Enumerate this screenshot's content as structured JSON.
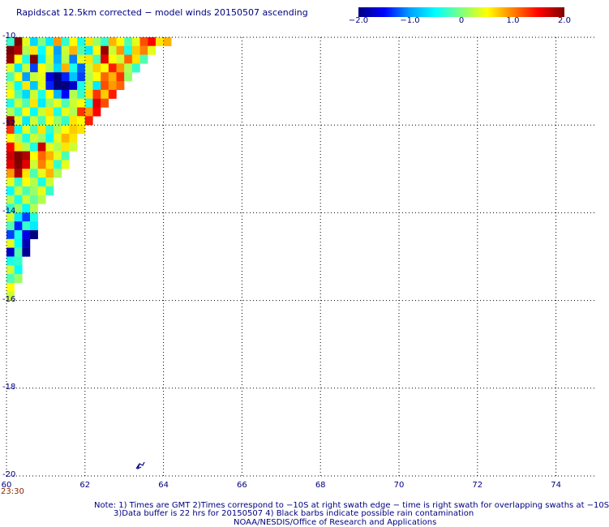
{
  "title": "Rapidscat 12.5km corrected − model winds 20150507 ascending",
  "colorbar": {
    "labels": [
      "−2.0",
      "−1.0",
      "0",
      "1.0",
      "2.0"
    ],
    "values": [
      -2.0,
      -1.0,
      0,
      1.0,
      2.0
    ],
    "range": [
      -2.0,
      2.0
    ],
    "colors": [
      "#00007f",
      "#0000ff",
      "#00a0ff",
      "#00ffff",
      "#80ff80",
      "#ffff00",
      "#ff8000",
      "#ff0000",
      "#7f0000"
    ]
  },
  "map": {
    "lat_labels": [
      "-10",
      "-12",
      "-14",
      "-16",
      "-18",
      "-20"
    ],
    "lat_values": [
      -10,
      -12,
      -14,
      -16,
      -18,
      -20
    ],
    "lon_labels": [
      "60",
      "62",
      "64",
      "66",
      "68",
      "70",
      "72",
      "74"
    ],
    "lon_values": [
      60,
      62,
      64,
      66,
      68,
      70,
      72,
      74
    ],
    "lat_range": [
      -20,
      -10
    ],
    "lon_range": [
      60,
      75
    ],
    "grid": true,
    "time_label": "23:30",
    "swath": {
      "region": "triangle from -10S/60E to -10S/64.3E down to -16S/60E",
      "value_range": [
        -2.0,
        2.0
      ],
      "rows": [
        {
          "lat": -10.1,
          "values": [
            -0.3,
            2,
            0.4,
            -0.7,
            0,
            -0.6,
            0.9,
            -0.3,
            0.5,
            -0.4,
            0.6,
            0.1,
            -0.3,
            0.8,
            0.5,
            -0.2,
            0.4,
            1.2,
            1.5,
            0.6,
            0.8
          ]
        },
        {
          "lat": -10.3,
          "values": [
            2,
            1.8,
            0.2,
            0.6,
            -0.5,
            0.4,
            -1,
            0.3,
            0.8,
            -0.2,
            -0.6,
            0.5,
            1.9,
            0.3,
            0.9,
            -0.4,
            0.7,
            1,
            0.4
          ]
        },
        {
          "lat": -10.5,
          "values": [
            1.9,
            0.5,
            -0.4,
            2,
            -0.6,
            0.3,
            -0.9,
            0.2,
            -1.1,
            0.4,
            0.6,
            -0.2,
            1.6,
            0.5,
            0.3,
            1.1,
            0.6,
            -0.2
          ]
        },
        {
          "lat": -10.7,
          "values": [
            0.4,
            -0.6,
            0.3,
            -1.3,
            0.5,
            0.2,
            -0.7,
            0.8,
            -0.4,
            -1.2,
            0.3,
            0.7,
            0.5,
            1.4,
            0.9,
            0.2,
            -0.3
          ]
        },
        {
          "lat": -10.9,
          "values": [
            -0.2,
            0.5,
            -1,
            0.3,
            0.4,
            -1.6,
            -2,
            -1.4,
            -0.8,
            -1.3,
            0.2,
            0.5,
            1.1,
            0.8,
            1.3,
            0.1
          ]
        },
        {
          "lat": -11.1,
          "values": [
            0.3,
            -0.5,
            0.6,
            -0.8,
            0.4,
            -1.4,
            -2,
            -2,
            -1.7,
            -0.4,
            0.3,
            -0.6,
            1.2,
            0.9,
            1.1
          ]
        },
        {
          "lat": -11.3,
          "values": [
            0.5,
            -0.2,
            -0.7,
            0.3,
            -0.4,
            0.5,
            -0.9,
            -1.5,
            0.2,
            -0.3,
            0.6,
            1.3,
            0.7,
            1.4
          ]
        },
        {
          "lat": -11.5,
          "values": [
            -0.4,
            0.3,
            -0.2,
            0.6,
            -0.6,
            0.1,
            0.4,
            -0.2,
            0.3,
            0.5,
            -0.4,
            1.6,
            1.2
          ]
        },
        {
          "lat": -11.7,
          "values": [
            0.2,
            -0.3,
            0.5,
            -0.5,
            0.3,
            0.6,
            -0.4,
            0.4,
            0.2,
            1.3,
            0.9,
            1.5
          ]
        },
        {
          "lat": -11.9,
          "values": [
            1.9,
            0.4,
            -0.6,
            0.3,
            -0.2,
            0.5,
            0.1,
            -0.3,
            0.6,
            0.5,
            1.4
          ]
        },
        {
          "lat": -12.1,
          "values": [
            1.3,
            -0.5,
            0.4,
            -0.2,
            0.6,
            -0.3,
            0.2,
            0.5,
            0.7,
            0.6
          ]
        },
        {
          "lat": -12.3,
          "values": [
            0.5,
            0.2,
            -0.4,
            0.3,
            0.1,
            -0.5,
            0.4,
            0.8,
            0.6
          ]
        },
        {
          "lat": -12.5,
          "values": [
            1.5,
            0.6,
            0.2,
            -0.4,
            1.7,
            0.4,
            0.2,
            0.6,
            0.3
          ]
        },
        {
          "lat": -12.7,
          "values": [
            1.7,
            2,
            1.8,
            0.5,
            1.1,
            0.8,
            0.4,
            -0.2
          ]
        },
        {
          "lat": -12.9,
          "values": [
            1.6,
            2,
            1.6,
            0.3,
            1,
            0.6,
            -0.3,
            0.4
          ]
        },
        {
          "lat": -13.1,
          "values": [
            0.9,
            1.8,
            0.6,
            -0.2,
            0.4,
            0.8,
            0.2
          ]
        },
        {
          "lat": -13.3,
          "values": [
            0.4,
            -0.3,
            0.5,
            0.2,
            -0.4,
            0.3
          ]
        },
        {
          "lat": -13.5,
          "values": [
            -0.5,
            0.3,
            -0.2,
            0.1,
            0.4,
            -0.3
          ]
        },
        {
          "lat": -13.7,
          "values": [
            0.2,
            -0.4,
            0.3,
            -0.1,
            0.2
          ]
        },
        {
          "lat": -13.9,
          "values": [
            -0.3,
            0.1,
            -0.5,
            0.2
          ]
        },
        {
          "lat": -14.1,
          "values": [
            0.3,
            -0.6,
            -1.3,
            -0.4
          ]
        },
        {
          "lat": -14.3,
          "values": [
            -0.2,
            -1.4,
            -0.3,
            -0.6
          ]
        },
        {
          "lat": -14.5,
          "values": [
            -1.3,
            -0.4,
            -1.6,
            -2
          ]
        },
        {
          "lat": -14.7,
          "values": [
            0.4,
            -0.5,
            -1.8
          ]
        },
        {
          "lat": -14.9,
          "values": [
            -1.7,
            -0.2,
            -1.9
          ]
        },
        {
          "lat": -15.1,
          "values": [
            -0.4,
            -0.3
          ]
        },
        {
          "lat": -15.3,
          "values": [
            0.3,
            -0.5
          ]
        },
        {
          "lat": -15.5,
          "values": [
            -0.2,
            0.1
          ]
        },
        {
          "lat": -15.7,
          "values": [
            0.5
          ]
        },
        {
          "lat": -15.9,
          "values": [
            0.3
          ]
        }
      ]
    }
  },
  "notes": [
    "Note: 1) Times are GMT 2)Times correspond to −10S at right swath edge − time is right swath for overlapping swaths at −10S",
    "3)Data buffer is 22 hrs for 20150507 4) Black barbs indicate possible rain contamination",
    "NOAA/NESDIS/Office of Research and Applications"
  ]
}
